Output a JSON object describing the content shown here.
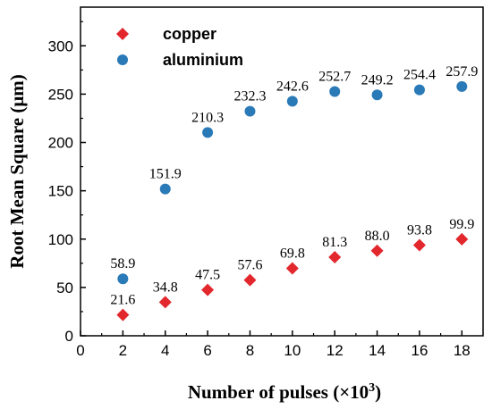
{
  "chart_data": {
    "type": "scatter",
    "xlabel_main": "Number of pulses (×10",
    "xlabel_sup": "3",
    "xlabel_end": ")",
    "ylabel": "Root Mean Square (μm)",
    "xlim": [
      0,
      19
    ],
    "ylim": [
      0,
      340
    ],
    "x_ticks": [
      0,
      2,
      4,
      6,
      8,
      10,
      12,
      14,
      16,
      18
    ],
    "y_ticks": [
      0,
      50,
      100,
      150,
      200,
      250,
      300
    ],
    "grid": false,
    "legend_position": "top-left",
    "series": [
      {
        "name": "copper",
        "marker": "diamond",
        "color": "#e2272d",
        "x": [
          2,
          4,
          6,
          8,
          10,
          12,
          14,
          16,
          18
        ],
        "y": [
          21.6,
          34.8,
          47.5,
          57.6,
          69.8,
          81.3,
          88.0,
          93.8,
          99.9
        ],
        "labels": [
          "21.6",
          "34.8",
          "47.5",
          "57.6",
          "69.8",
          "81.3",
          "88.0",
          "93.8",
          "99.9"
        ]
      },
      {
        "name": "aluminium",
        "marker": "circle",
        "color": "#2a7ab8",
        "x": [
          2,
          4,
          6,
          8,
          10,
          12,
          14,
          16,
          18
        ],
        "y": [
          58.9,
          151.9,
          210.3,
          232.3,
          242.6,
          252.7,
          249.2,
          254.4,
          257.9
        ],
        "labels": [
          "58.9",
          "151.9",
          "210.3",
          "232.3",
          "242.6",
          "252.7",
          "249.2",
          "254.4",
          "257.9"
        ]
      }
    ]
  }
}
